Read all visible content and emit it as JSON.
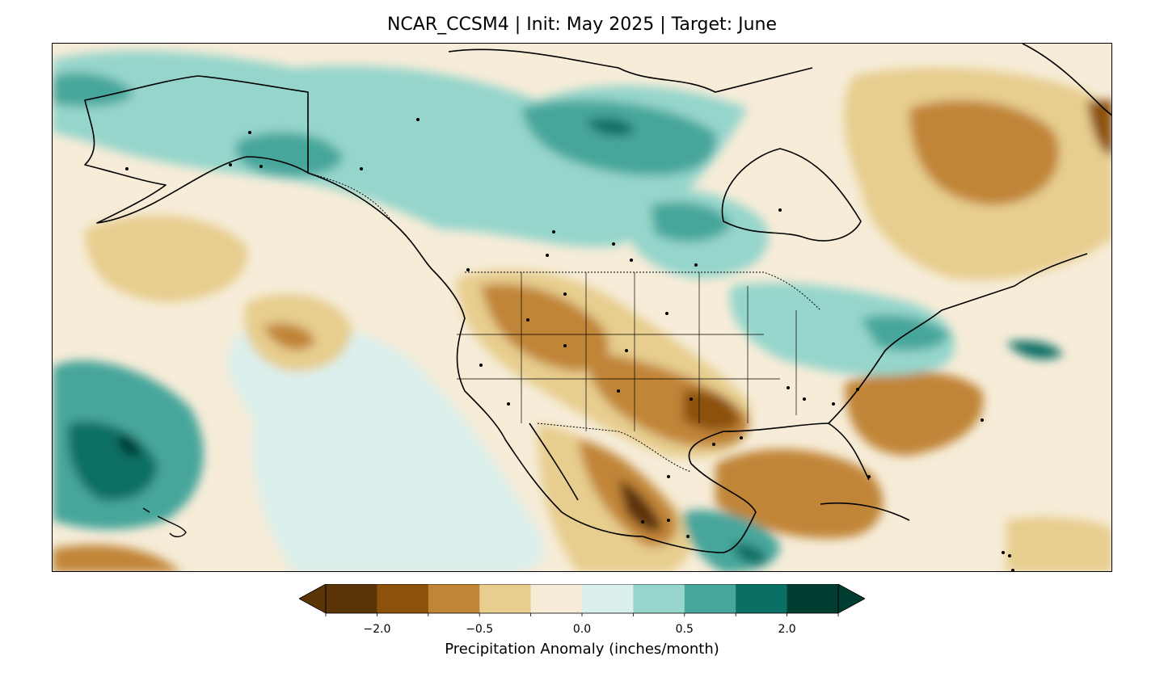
{
  "title": "NCAR_CCSM4 | Init: May 2025 | Target: June",
  "map": {
    "projection": "plate-carree",
    "region": "North America",
    "variable": "precipitation anomaly",
    "colormap": "BrBG"
  },
  "colorbar": {
    "label": "Precipitation Anomaly (inches/month)",
    "ticks": [
      "−2.0",
      "−0.5",
      "0.0",
      "0.5",
      "2.0"
    ],
    "colors": [
      "#5a3307",
      "#8c510a",
      "#c18537",
      "#e7cd8e",
      "#f6ecd8",
      "#dbefec",
      "#95d5cb",
      "#46a69b",
      "#0a7066",
      "#003c30"
    ],
    "extend": "both"
  },
  "palette": {
    "brown_dark": "#5a3307",
    "brown": "#8c510a",
    "brown_mid": "#c18537",
    "tan": "#e7cd8e",
    "cream": "#f6ecd8",
    "mint_light": "#dbefec",
    "mint": "#95d5cb",
    "teal": "#46a69b",
    "teal_dark": "#0a7066",
    "teal_deep": "#003c30"
  }
}
